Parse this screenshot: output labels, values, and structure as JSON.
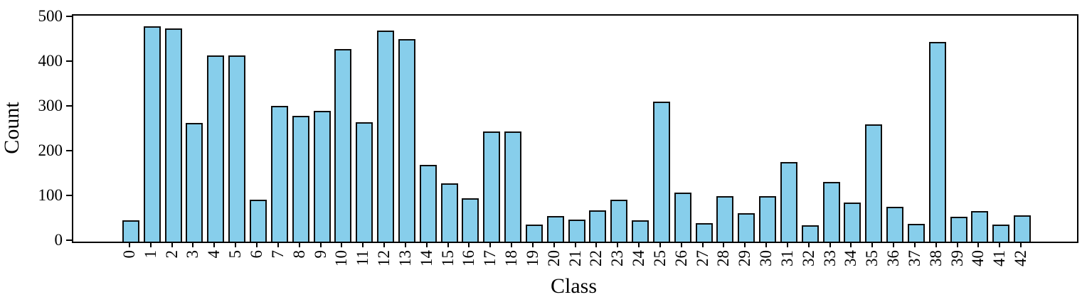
{
  "chart_data": {
    "type": "bar",
    "title": "",
    "xlabel": "Class",
    "ylabel": "Count",
    "categories": [
      "0",
      "1",
      "2",
      "3",
      "4",
      "5",
      "6",
      "7",
      "8",
      "9",
      "10",
      "11",
      "12",
      "13",
      "14",
      "15",
      "16",
      "17",
      "18",
      "19",
      "20",
      "21",
      "22",
      "23",
      "24",
      "25",
      "26",
      "27",
      "28",
      "29",
      "30",
      "31",
      "32",
      "33",
      "34",
      "35",
      "36",
      "37",
      "38",
      "39",
      "40",
      "41",
      "42"
    ],
    "values": [
      48,
      481,
      475,
      265,
      415,
      415,
      93,
      303,
      280,
      292,
      430,
      267,
      471,
      451,
      172,
      130,
      96,
      245,
      245,
      38,
      57,
      50,
      70,
      93,
      48,
      313,
      109,
      42,
      102,
      63,
      102,
      178,
      36,
      133,
      87,
      261,
      77,
      40,
      445,
      55,
      69,
      38,
      59
    ],
    "yticks": [
      0,
      100,
      200,
      300,
      400,
      500
    ],
    "ylim": [
      0,
      504
    ],
    "bar_color": "#87CEEB",
    "bar_edge_color": "#0d0d0d",
    "axis_color": "#000000",
    "grid": false,
    "legend": null
  }
}
